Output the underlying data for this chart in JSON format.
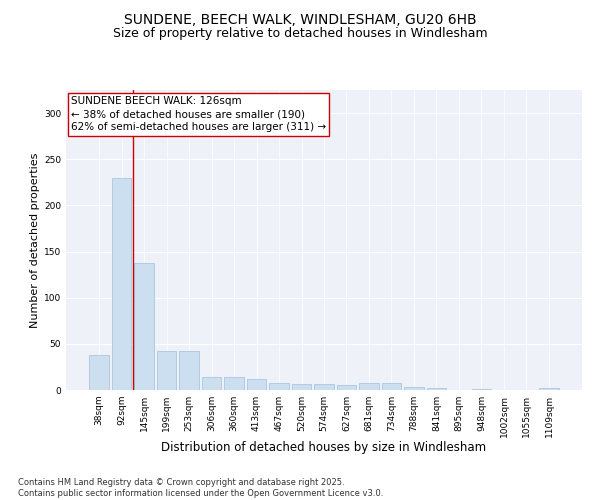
{
  "title1": "SUNDENE, BEECH WALK, WINDLESHAM, GU20 6HB",
  "title2": "Size of property relative to detached houses in Windlesham",
  "xlabel": "Distribution of detached houses by size in Windlesham",
  "ylabel": "Number of detached properties",
  "categories": [
    "38sqm",
    "92sqm",
    "145sqm",
    "199sqm",
    "253sqm",
    "306sqm",
    "360sqm",
    "413sqm",
    "467sqm",
    "520sqm",
    "574sqm",
    "627sqm",
    "681sqm",
    "734sqm",
    "788sqm",
    "841sqm",
    "895sqm",
    "948sqm",
    "1002sqm",
    "1055sqm",
    "1109sqm"
  ],
  "values": [
    38,
    230,
    138,
    42,
    42,
    14,
    14,
    12,
    8,
    6,
    6,
    5,
    8,
    8,
    3,
    2,
    0,
    1,
    0,
    0,
    2
  ],
  "bar_color": "#ccdff0",
  "bar_edge_color": "#a0bfd8",
  "vline_x": 1.5,
  "vline_color": "#cc0000",
  "annotation_lines": [
    "SUNDENE BEECH WALK: 126sqm",
    "← 38% of detached houses are smaller (190)",
    "62% of semi-detached houses are larger (311) →"
  ],
  "ylim": [
    0,
    325
  ],
  "yticks": [
    0,
    50,
    100,
    150,
    200,
    250,
    300
  ],
  "background_color": "#eef2f8",
  "footer_text": "Contains HM Land Registry data © Crown copyright and database right 2025.\nContains public sector information licensed under the Open Government Licence v3.0.",
  "title1_fontsize": 10,
  "title2_fontsize": 9,
  "xlabel_fontsize": 8.5,
  "ylabel_fontsize": 8,
  "tick_fontsize": 6.5,
  "annotation_fontsize": 7.5,
  "footer_fontsize": 6
}
